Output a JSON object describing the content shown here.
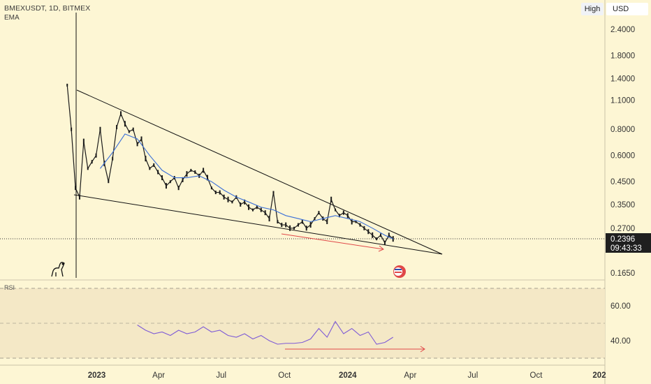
{
  "header": {
    "symbol": "BMEXUSDT, 1D, BITMEX",
    "indicator": "EMA",
    "high_button": "High",
    "currency_button": "USD"
  },
  "colors": {
    "background": "#fdf6d4",
    "candles": "#1a1a1a",
    "ema": "#3a6fd8",
    "rsi": "#7e5bd6",
    "rsi_band": "#f4e8c6",
    "price_tag": "#1f1f1f",
    "divergence_arrow": "#e04848"
  },
  "price_axis": {
    "scale": "log",
    "ticks": [
      "2.4000",
      "1.8000",
      "1.4000",
      "1.1000",
      "0.8000",
      "0.6000",
      "0.4500",
      "0.3500",
      "0.2700",
      "0.1650"
    ]
  },
  "current": {
    "price": "0.2396",
    "countdown": "09:43:33"
  },
  "time_axis": {
    "labels": [
      "2023",
      "Apr",
      "Jul",
      "Oct",
      "2024",
      "Apr",
      "Jul",
      "Oct",
      "202"
    ]
  },
  "rsi": {
    "title": "RSI",
    "ticks": [
      "60.00",
      "40.00"
    ]
  },
  "chart_data": {
    "type": "line",
    "title": "BMEXUSDT, 1D, BITMEX",
    "series": [
      {
        "name": "Price",
        "x": [
          "2022-11-19",
          "2022-11-25",
          "2022-12-01",
          "2022-12-07",
          "2022-12-13",
          "2022-12-19",
          "2022-12-25",
          "2022-12-31",
          "2023-01-06",
          "2023-01-12",
          "2023-01-18",
          "2023-01-24",
          "2023-01-30",
          "2023-02-05",
          "2023-02-11",
          "2023-02-17",
          "2023-02-23",
          "2023-03-01",
          "2023-03-07",
          "2023-03-13",
          "2023-03-19",
          "2023-03-25",
          "2023-03-31",
          "2023-04-06",
          "2023-04-12",
          "2023-04-18",
          "2023-04-24",
          "2023-04-30",
          "2023-05-06",
          "2023-05-12",
          "2023-05-18",
          "2023-05-24",
          "2023-05-30",
          "2023-06-05",
          "2023-06-11",
          "2023-06-17",
          "2023-06-23",
          "2023-06-29",
          "2023-07-05",
          "2023-07-11",
          "2023-07-17",
          "2023-07-23",
          "2023-07-29",
          "2023-08-04",
          "2023-08-10",
          "2023-08-16",
          "2023-08-22",
          "2023-08-28",
          "2023-09-03",
          "2023-09-09",
          "2023-09-15",
          "2023-09-21",
          "2023-09-27",
          "2023-10-03",
          "2023-10-09",
          "2023-10-15",
          "2023-10-21",
          "2023-10-27",
          "2023-11-02",
          "2023-11-08",
          "2023-11-14",
          "2023-11-20",
          "2023-11-26",
          "2023-12-02",
          "2023-12-08",
          "2023-12-14",
          "2023-12-20",
          "2023-12-26",
          "2024-01-01",
          "2024-01-07",
          "2024-01-13",
          "2024-01-19",
          "2024-01-25",
          "2024-01-31",
          "2024-02-06",
          "2024-02-12",
          "2024-02-18",
          "2024-02-24",
          "2024-03-01",
          "2024-03-07"
        ],
        "values": [
          1.3,
          0.8,
          0.42,
          0.38,
          0.7,
          0.52,
          0.56,
          0.6,
          0.8,
          0.55,
          0.45,
          0.58,
          0.82,
          0.95,
          0.85,
          0.78,
          0.8,
          0.68,
          0.72,
          0.58,
          0.52,
          0.54,
          0.5,
          0.47,
          0.43,
          0.45,
          0.47,
          0.42,
          0.46,
          0.49,
          0.51,
          0.5,
          0.48,
          0.51,
          0.47,
          0.42,
          0.4,
          0.4,
          0.38,
          0.37,
          0.36,
          0.38,
          0.35,
          0.36,
          0.34,
          0.33,
          0.34,
          0.33,
          0.32,
          0.3,
          0.4,
          0.29,
          0.28,
          0.28,
          0.27,
          0.27,
          0.28,
          0.29,
          0.27,
          0.28,
          0.3,
          0.32,
          0.3,
          0.29,
          0.37,
          0.33,
          0.31,
          0.32,
          0.31,
          0.29,
          0.29,
          0.28,
          0.27,
          0.26,
          0.25,
          0.24,
          0.25,
          0.23,
          0.25,
          0.24
        ]
      },
      {
        "name": "EMA",
        "x": [
          "2023-01-06",
          "2023-01-24",
          "2023-02-11",
          "2023-03-01",
          "2023-03-19",
          "2023-04-06",
          "2023-04-24",
          "2023-05-12",
          "2023-05-30",
          "2023-06-17",
          "2023-07-05",
          "2023-07-23",
          "2023-08-10",
          "2023-08-28",
          "2023-09-15",
          "2023-10-03",
          "2023-10-21",
          "2023-11-08",
          "2023-11-26",
          "2023-12-14",
          "2024-01-01",
          "2024-01-19",
          "2024-02-06",
          "2024-02-24",
          "2024-03-07"
        ],
        "values": [
          0.52,
          0.62,
          0.76,
          0.72,
          0.6,
          0.51,
          0.47,
          0.47,
          0.48,
          0.45,
          0.41,
          0.38,
          0.36,
          0.34,
          0.33,
          0.31,
          0.3,
          0.29,
          0.3,
          0.31,
          0.3,
          0.29,
          0.27,
          0.25,
          0.24
        ]
      }
    ],
    "rsi_series": {
      "x": [
        "2023-03-01",
        "2023-03-13",
        "2023-03-25",
        "2023-04-06",
        "2023-04-18",
        "2023-04-30",
        "2023-05-12",
        "2023-05-24",
        "2023-06-05",
        "2023-06-17",
        "2023-06-29",
        "2023-07-11",
        "2023-07-23",
        "2023-08-04",
        "2023-08-16",
        "2023-08-28",
        "2023-09-09",
        "2023-09-21",
        "2023-10-03",
        "2023-10-15",
        "2023-10-27",
        "2023-11-08",
        "2023-11-20",
        "2023-12-02",
        "2023-12-14",
        "2023-12-26",
        "2024-01-07",
        "2024-01-19",
        "2024-01-31",
        "2024-02-12",
        "2024-02-24",
        "2024-03-07"
      ],
      "values": [
        49,
        46,
        44,
        45,
        43,
        46,
        44,
        45,
        48,
        45,
        46,
        43,
        42,
        44,
        41,
        43,
        40,
        38,
        38.5,
        38.5,
        39,
        41,
        47,
        42,
        51,
        44,
        47,
        43,
        45,
        38,
        39,
        42
      ]
    },
    "ylim": [
      0.14,
      3.0
    ],
    "rsi_ylim": [
      28,
      72
    ]
  }
}
